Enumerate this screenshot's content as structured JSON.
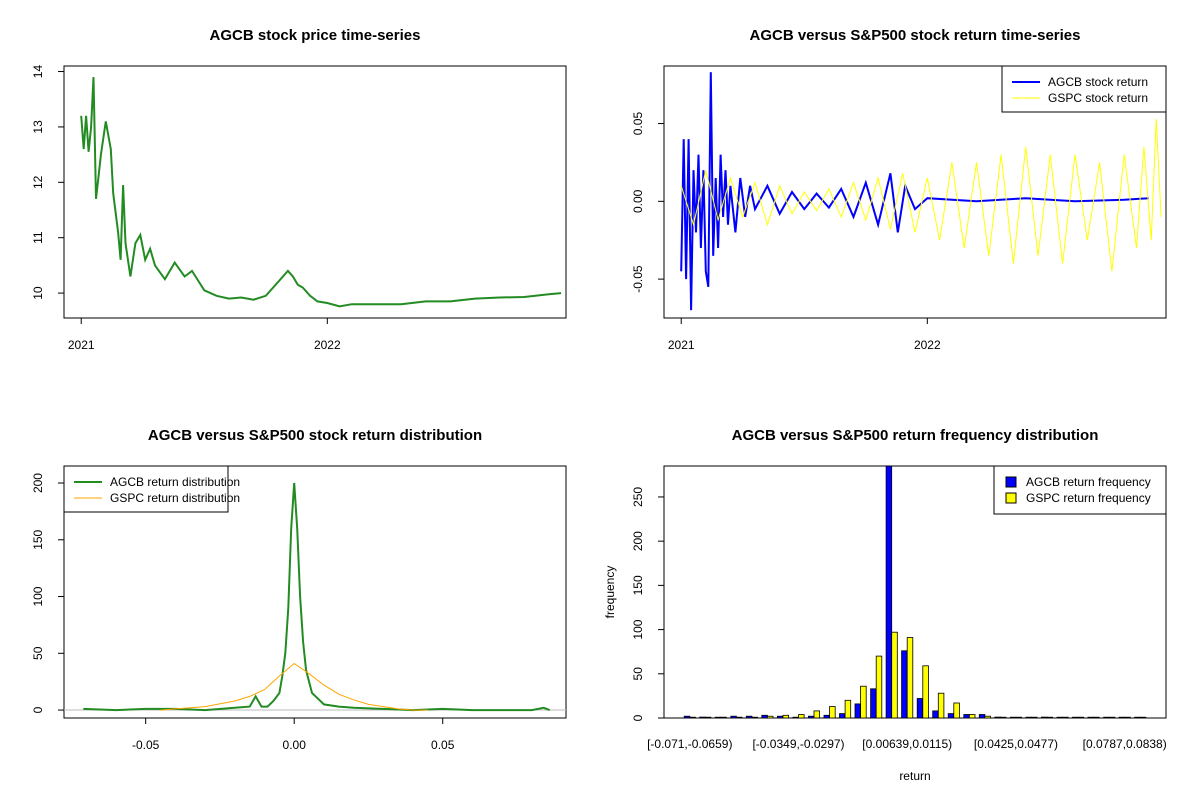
{
  "chart_data": [
    {
      "id": "p1",
      "type": "line",
      "title": "AGCB stock price time-series",
      "xlabel": "",
      "ylabel": "",
      "x_ticks": [
        {
          "value": 2021.0,
          "label": "2021"
        },
        {
          "value": 2022.0,
          "label": "2022"
        }
      ],
      "y_ticks": [
        10,
        11,
        12,
        13,
        14
      ],
      "xlim": [
        2020.93,
        2022.97
      ],
      "ylim": [
        9.55,
        14.1
      ],
      "series": [
        {
          "name": "AGCB price",
          "color": "#228B22",
          "x": [
            2021.0,
            2021.01,
            2021.02,
            2021.03,
            2021.04,
            2021.05,
            2021.06,
            2021.07,
            2021.08,
            2021.1,
            2021.12,
            2021.13,
            2021.15,
            2021.16,
            2021.17,
            2021.18,
            2021.2,
            2021.22,
            2021.24,
            2021.26,
            2021.28,
            2021.3,
            2021.34,
            2021.38,
            2021.42,
            2021.45,
            2021.5,
            2021.55,
            2021.6,
            2021.65,
            2021.7,
            2021.75,
            2021.8,
            2021.84,
            2021.86,
            2021.88,
            2021.9,
            2021.93,
            2021.96,
            2022.0,
            2022.05,
            2022.1,
            2022.2,
            2022.3,
            2022.4,
            2022.5,
            2022.6,
            2022.7,
            2022.8,
            2022.9,
            2022.95
          ],
          "values": [
            13.2,
            12.6,
            13.2,
            12.55,
            13.0,
            13.9,
            11.7,
            12.1,
            12.5,
            13.1,
            12.6,
            11.8,
            11.1,
            10.6,
            11.95,
            10.9,
            10.3,
            10.9,
            11.05,
            10.6,
            10.8,
            10.5,
            10.25,
            10.55,
            10.3,
            10.4,
            10.05,
            9.95,
            9.9,
            9.92,
            9.88,
            9.95,
            10.2,
            10.4,
            10.3,
            10.15,
            10.1,
            9.95,
            9.85,
            9.82,
            9.76,
            9.8,
            9.8,
            9.8,
            9.85,
            9.85,
            9.9,
            9.92,
            9.93,
            9.98,
            10.0
          ]
        }
      ]
    },
    {
      "id": "p2",
      "type": "line",
      "title": "AGCB versus S&P500 stock return time-series",
      "xlabel": "",
      "ylabel": "",
      "x_ticks": [
        {
          "value": 2021.0,
          "label": "2021"
        },
        {
          "value": 2022.0,
          "label": "2022"
        }
      ],
      "y_ticks": [
        {
          "value": -0.05,
          "label": "-0.05"
        },
        {
          "value": 0.0,
          "label": "0.00"
        },
        {
          "value": 0.05,
          "label": "0.05"
        }
      ],
      "xlim": [
        2020.93,
        2022.97
      ],
      "ylim": [
        -0.075,
        0.087
      ],
      "legend": {
        "position": "top-right",
        "entries": [
          "AGCB stock return",
          "GSPC stock return"
        ]
      },
      "series": [
        {
          "name": "AGCB stock return",
          "color": "#0000FF",
          "x": [
            2021.0,
            2021.01,
            2021.02,
            2021.03,
            2021.04,
            2021.05,
            2021.06,
            2021.07,
            2021.08,
            2021.09,
            2021.1,
            2021.11,
            2021.12,
            2021.13,
            2021.14,
            2021.15,
            2021.16,
            2021.17,
            2021.18,
            2021.19,
            2021.2,
            2021.22,
            2021.24,
            2021.26,
            2021.28,
            2021.3,
            2021.35,
            2021.4,
            2021.45,
            2021.5,
            2021.55,
            2021.6,
            2021.65,
            2021.7,
            2021.75,
            2021.8,
            2021.85,
            2021.88,
            2021.91,
            2021.95,
            2022.0,
            2022.2,
            2022.4,
            2022.6,
            2022.8,
            2022.9
          ],
          "values": [
            -0.045,
            0.04,
            -0.05,
            0.04,
            -0.07,
            0.02,
            -0.02,
            0.03,
            -0.03,
            0.02,
            -0.045,
            -0.055,
            0.083,
            -0.035,
            0.015,
            -0.03,
            0.03,
            -0.01,
            0.02,
            -0.015,
            0.01,
            -0.02,
            0.015,
            -0.01,
            0.01,
            -0.005,
            0.01,
            -0.008,
            0.006,
            -0.005,
            0.005,
            -0.004,
            0.008,
            -0.01,
            0.012,
            -0.015,
            0.018,
            -0.02,
            0.01,
            -0.005,
            0.002,
            0.0,
            0.002,
            0.0,
            0.001,
            0.002
          ]
        },
        {
          "name": "GSPC stock return",
          "color": "#FFFF00",
          "x": [
            2021.0,
            2021.05,
            2021.1,
            2021.15,
            2021.2,
            2021.25,
            2021.3,
            2021.35,
            2021.4,
            2021.45,
            2021.5,
            2021.55,
            2021.6,
            2021.65,
            2021.7,
            2021.75,
            2021.8,
            2021.85,
            2021.9,
            2021.95,
            2022.0,
            2022.05,
            2022.1,
            2022.15,
            2022.2,
            2022.25,
            2022.3,
            2022.35,
            2022.4,
            2022.45,
            2022.5,
            2022.55,
            2022.6,
            2022.65,
            2022.7,
            2022.75,
            2022.8,
            2022.85,
            2022.88,
            2022.91,
            2022.93,
            2022.95
          ],
          "values": [
            0.01,
            -0.015,
            0.02,
            -0.012,
            0.015,
            -0.01,
            0.012,
            -0.015,
            0.01,
            -0.008,
            0.006,
            -0.006,
            0.008,
            -0.01,
            0.012,
            -0.012,
            0.015,
            -0.018,
            0.018,
            -0.02,
            0.015,
            -0.025,
            0.025,
            -0.03,
            0.025,
            -0.035,
            0.03,
            -0.04,
            0.035,
            -0.035,
            0.03,
            -0.04,
            0.03,
            -0.025,
            0.025,
            -0.045,
            0.03,
            -0.03,
            0.035,
            -0.025,
            0.053,
            -0.01
          ]
        }
      ]
    },
    {
      "id": "p3",
      "type": "line",
      "title": "AGCB versus S&P500 stock return distribution",
      "xlabel": "",
      "ylabel": "",
      "x_ticks": [
        {
          "value": -0.05,
          "label": "-0.05"
        },
        {
          "value": 0.0,
          "label": "0.00"
        },
        {
          "value": 0.05,
          "label": "0.05"
        }
      ],
      "y_ticks": [
        0,
        50,
        100,
        150,
        200
      ],
      "xlim": [
        -0.0775,
        0.0915
      ],
      "ylim": [
        -7,
        215
      ],
      "legend": {
        "position": "top-left",
        "entries": [
          "AGCB return distribution",
          "GSPC return distribution"
        ]
      },
      "series": [
        {
          "name": "AGCB return distribution",
          "color": "#228B22",
          "x": [
            -0.071,
            -0.06,
            -0.05,
            -0.04,
            -0.03,
            -0.02,
            -0.015,
            -0.013,
            -0.011,
            -0.009,
            -0.007,
            -0.005,
            -0.004,
            -0.003,
            -0.002,
            -0.001,
            0.0,
            0.001,
            0.002,
            0.003,
            0.004,
            0.006,
            0.008,
            0.01,
            0.015,
            0.02,
            0.03,
            0.04,
            0.05,
            0.06,
            0.07,
            0.08,
            0.084,
            0.086
          ],
          "values": [
            1,
            0,
            1,
            1,
            0,
            2,
            3,
            12,
            3,
            3,
            8,
            15,
            30,
            50,
            90,
            160,
            200,
            160,
            100,
            60,
            35,
            15,
            10,
            5,
            3,
            2,
            1,
            0,
            1,
            0,
            0,
            0,
            2,
            0
          ]
        },
        {
          "name": "GSPC return distribution",
          "color": "#FFA500",
          "x": [
            -0.045,
            -0.04,
            -0.03,
            -0.02,
            -0.015,
            -0.01,
            -0.005,
            0.0,
            0.005,
            0.01,
            0.015,
            0.02,
            0.025,
            0.03,
            0.035,
            0.04,
            0.045
          ],
          "values": [
            0,
            1,
            3,
            8,
            12,
            18,
            30,
            41,
            32,
            22,
            14,
            9,
            5,
            3,
            1,
            0,
            0
          ]
        }
      ]
    },
    {
      "id": "p4",
      "type": "bar",
      "title": "AGCB versus S&P500 return frequency distribution",
      "xlabel": "return",
      "ylabel": "frequency",
      "y_ticks": [
        0,
        50,
        100,
        150,
        200,
        250
      ],
      "ylim": [
        0,
        285
      ],
      "categories_shown": [
        "[-0.071,-0.0659)",
        "[-0.0349,-0.0297)",
        "[0.00639,0.0115)",
        "[0.0425,0.0477)",
        "[0.0787,0.0838)"
      ],
      "category_count": 30,
      "label_every": 7,
      "legend": {
        "position": "top-right",
        "entries": [
          "AGCB return frequency",
          "GSPC return frequency"
        ]
      },
      "series": [
        {
          "name": "AGCB return frequency",
          "color": "#0000FF",
          "values": [
            2,
            1,
            0,
            2,
            2,
            3,
            2,
            0,
            2,
            3,
            5,
            16,
            33,
            285,
            76,
            22,
            8,
            5,
            4,
            4,
            1,
            0,
            0,
            1,
            0,
            0,
            0,
            0,
            0,
            0
          ]
        },
        {
          "name": "GSPC return frequency",
          "color": "#FFFF00",
          "values": [
            0,
            0,
            0,
            0,
            0,
            2,
            3,
            4,
            8,
            13,
            20,
            36,
            70,
            97,
            91,
            59,
            28,
            17,
            4,
            2,
            0,
            0,
            0,
            0,
            0,
            0,
            0,
            0,
            0,
            0
          ]
        }
      ]
    }
  ]
}
